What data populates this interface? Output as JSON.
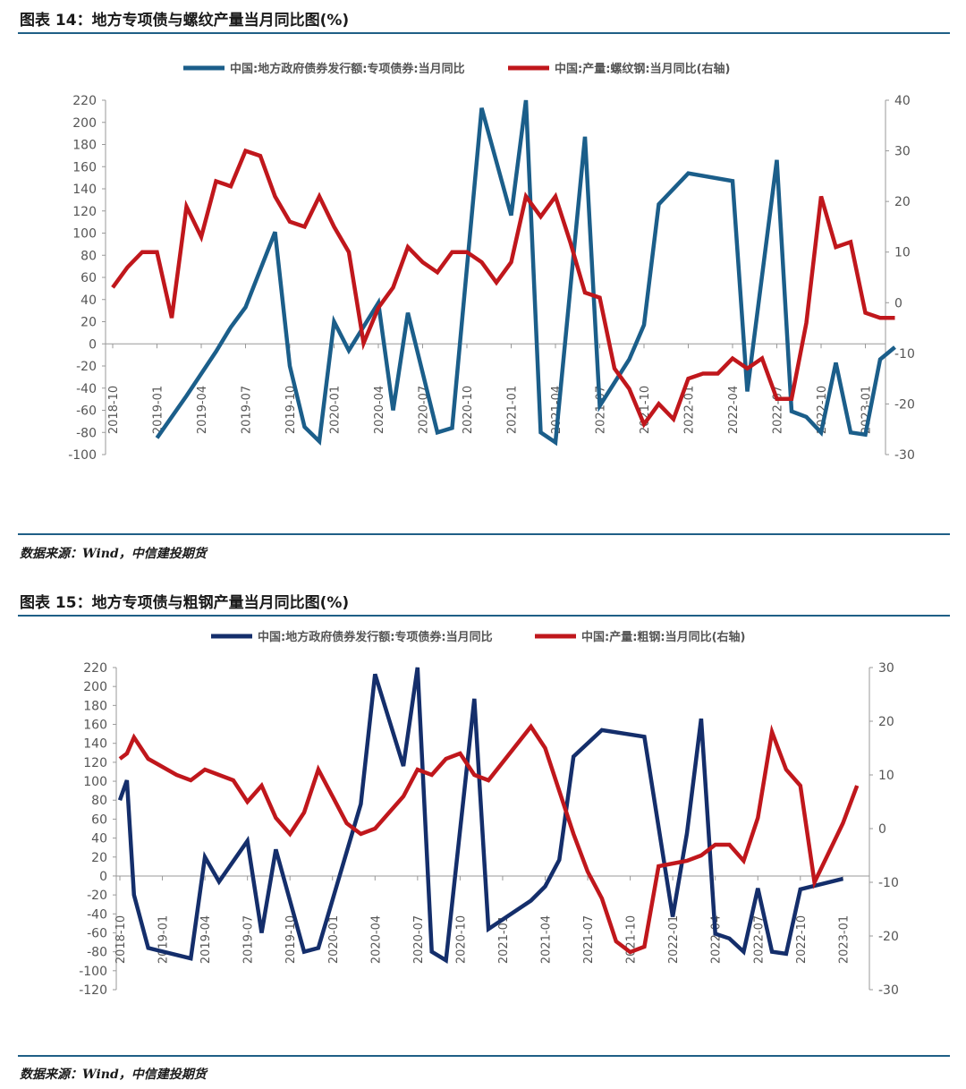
{
  "figures": [
    {
      "title": "图表 14：地方专项债与螺纹产量当月同比图(%)",
      "source": "数据来源：Wind，中信建投期货"
    },
    {
      "title": "图表 15：地方专项债与粗钢产量当月同比图(%)",
      "source": "数据来源：Wind，中信建投期货"
    }
  ],
  "chart_data": [
    {
      "type": "line",
      "title": "地方专项债与螺纹产量当月同比图(%)",
      "categories": [
        "2018-10",
        "2019-01",
        "2019-04",
        "2019-07",
        "2019-10",
        "2020-01",
        "2020-04",
        "2020-07",
        "2020-10",
        "2021-01",
        "2021-04",
        "2021-07",
        "2021-10",
        "2022-01",
        "2022-04",
        "2022-07",
        "2022-10",
        "2023-01"
      ],
      "tick_labels": [
        "2018-10",
        "2019-01",
        "2019-04",
        "2019-07",
        "2019-10",
        "2020-01",
        "2020-04",
        "2020-07",
        "2020-10",
        "2021-01",
        "2021-04",
        "2021-07",
        "2021-10",
        "2022-01",
        "2022-04",
        "2022-07",
        "2022-10",
        "2023-01"
      ],
      "ylim_left": [
        -100,
        220
      ],
      "yticks_left": [
        "220",
        "200",
        "180",
        "160",
        "140",
        "120",
        "100",
        "80",
        "60",
        "40",
        "20",
        "0",
        "-20",
        "-40",
        "-60",
        "-80",
        "-100"
      ],
      "ylim_right": [
        -30,
        40
      ],
      "yticks_right": [
        "40",
        "30",
        "20",
        "10",
        "0",
        "-10",
        "-20",
        "-30"
      ],
      "series": [
        {
          "name": "中国:地方政府债券发行额:专项债券:当月同比",
          "axis": "left",
          "color": "#1b5e8a",
          "points": [
            [
              3,
              -85
            ],
            [
              5,
              -47
            ],
            [
              7,
              -7
            ],
            [
              8,
              15
            ],
            [
              9,
              33
            ],
            [
              11,
              101
            ],
            [
              12,
              -20
            ],
            [
              13,
              -75
            ],
            [
              14,
              -88
            ],
            [
              15,
              20
            ],
            [
              16,
              -6
            ],
            [
              18,
              37
            ],
            [
              19,
              -60
            ],
            [
              20,
              28
            ],
            [
              22,
              -80
            ],
            [
              23,
              -76
            ],
            [
              25,
              213
            ],
            [
              27,
              116
            ],
            [
              28,
              220
            ],
            [
              29,
              -80
            ],
            [
              30,
              -89
            ],
            [
              32,
              187
            ],
            [
              33,
              -56
            ],
            [
              35,
              -14
            ],
            [
              36,
              17
            ],
            [
              37,
              126
            ],
            [
              39,
              154
            ],
            [
              42,
              147
            ],
            [
              43,
              -43
            ],
            [
              45,
              166
            ],
            [
              46,
              -61
            ],
            [
              47,
              -66
            ],
            [
              48,
              -80
            ],
            [
              49,
              -17
            ],
            [
              50,
              -80
            ],
            [
              51,
              -82
            ],
            [
              52,
              -14
            ],
            [
              53,
              -3
            ]
          ]
        },
        {
          "name": "中国:产量:螺纹钢:当月同比(右轴)",
          "axis": "right",
          "color": "#c0171c",
          "points": [
            [
              0,
              3
            ],
            [
              1,
              7
            ],
            [
              2,
              10
            ],
            [
              3,
              10
            ],
            [
              4,
              -3
            ],
            [
              5,
              19
            ],
            [
              6,
              13
            ],
            [
              7,
              24
            ],
            [
              8,
              23
            ],
            [
              9,
              30
            ],
            [
              10,
              29
            ],
            [
              11,
              21
            ],
            [
              12,
              16
            ],
            [
              13,
              15
            ],
            [
              14,
              21
            ],
            [
              15,
              15
            ],
            [
              16,
              10
            ],
            [
              17,
              -8
            ],
            [
              18,
              -1
            ],
            [
              19,
              3
            ],
            [
              20,
              11
            ],
            [
              21,
              8
            ],
            [
              22,
              6
            ],
            [
              23,
              10
            ],
            [
              24,
              10
            ],
            [
              25,
              8
            ],
            [
              26,
              4
            ],
            [
              27,
              8
            ],
            [
              28,
              21
            ],
            [
              29,
              17
            ],
            [
              30,
              21
            ],
            [
              31,
              12
            ],
            [
              32,
              2
            ],
            [
              33,
              1
            ],
            [
              34,
              -13
            ],
            [
              35,
              -17
            ],
            [
              36,
              -24
            ],
            [
              37,
              -20
            ],
            [
              38,
              -23
            ],
            [
              39,
              -15
            ],
            [
              40,
              -14
            ],
            [
              41,
              -14
            ],
            [
              42,
              -11
            ],
            [
              43,
              -13
            ],
            [
              44,
              -11
            ],
            [
              45,
              -19
            ],
            [
              46,
              -19
            ],
            [
              47,
              -4
            ],
            [
              48,
              21
            ],
            [
              49,
              11
            ],
            [
              50,
              12
            ],
            [
              51,
              -2
            ],
            [
              52,
              -3
            ],
            [
              53,
              -3
            ]
          ]
        }
      ]
    },
    {
      "type": "line",
      "title": "地方专项债与粗钢产量当月同比图(%)",
      "categories": [
        "2018-10",
        "2019-01",
        "2019-04",
        "2019-07",
        "2019-10",
        "2020-01",
        "2020-04",
        "2020-07",
        "2020-10",
        "2021-01",
        "2021-04",
        "2021-07",
        "2021-10",
        "2022-01",
        "2022-04",
        "2022-07",
        "2022-10",
        "2023-01"
      ],
      "tick_labels": [
        "2018-10",
        "2019-01",
        "2019-04",
        "2019-07",
        "2019-10",
        "2020-01",
        "2020-04",
        "2020-07",
        "2020-10",
        "2021-01",
        "2021-04",
        "2021-07",
        "2021-10",
        "2022-01",
        "2022-04",
        "2022-07",
        "2022-10",
        "2023-01"
      ],
      "ylim_left": [
        -120,
        220
      ],
      "yticks_left": [
        "220",
        "200",
        "180",
        "160",
        "140",
        "120",
        "100",
        "80",
        "60",
        "40",
        "20",
        "0",
        "-20",
        "-40",
        "-60",
        "-80",
        "-100",
        "-120"
      ],
      "ylim_right": [
        -30,
        30
      ],
      "yticks_right": [
        "30",
        "20",
        "10",
        "0",
        "-10",
        "-20",
        "-30"
      ],
      "series": [
        {
          "name": "中国:地方政府债券发行额:专项债券:当月同比",
          "axis": "left",
          "color": "#142e6b",
          "points": [
            [
              0,
              80
            ],
            [
              0.5,
              101
            ],
            [
              1,
              -20
            ],
            [
              2,
              -76
            ],
            [
              5,
              -87
            ],
            [
              6,
              20
            ],
            [
              7,
              -6
            ],
            [
              9,
              37
            ],
            [
              10,
              -60
            ],
            [
              11,
              28
            ],
            [
              13,
              -80
            ],
            [
              14,
              -76
            ],
            [
              17,
              76
            ],
            [
              18,
              213
            ],
            [
              20,
              116
            ],
            [
              21,
              220
            ],
            [
              22,
              -80
            ],
            [
              23,
              -89
            ],
            [
              25,
              187
            ],
            [
              26,
              -56
            ],
            [
              29,
              -26
            ],
            [
              30,
              -11
            ],
            [
              31,
              17
            ],
            [
              32,
              126
            ],
            [
              34,
              154
            ],
            [
              37,
              147
            ],
            [
              39,
              -43
            ],
            [
              40,
              45
            ],
            [
              41,
              166
            ],
            [
              42,
              -61
            ],
            [
              43,
              -66
            ],
            [
              44,
              -80
            ],
            [
              45,
              -13
            ],
            [
              46,
              -80
            ],
            [
              47,
              -82
            ],
            [
              48,
              -14
            ],
            [
              51,
              -3
            ]
          ]
        },
        {
          "name": "中国:产量:粗钢:当月同比(右轴)",
          "axis": "right",
          "color": "#c0171c",
          "points": [
            [
              0,
              13
            ],
            [
              0.5,
              14
            ],
            [
              1,
              17
            ],
            [
              2,
              13
            ],
            [
              4,
              10
            ],
            [
              5,
              9
            ],
            [
              6,
              11
            ],
            [
              8,
              9
            ],
            [
              9,
              5
            ],
            [
              10,
              8
            ],
            [
              11,
              2
            ],
            [
              12,
              -1
            ],
            [
              13,
              3
            ],
            [
              14,
              11
            ],
            [
              15,
              6
            ],
            [
              16,
              1
            ],
            [
              17,
              -1
            ],
            [
              18,
              0
            ],
            [
              19,
              3
            ],
            [
              20,
              6
            ],
            [
              21,
              11
            ],
            [
              22,
              10
            ],
            [
              23,
              13
            ],
            [
              24,
              14
            ],
            [
              25,
              10
            ],
            [
              26,
              9
            ],
            [
              29,
              19
            ],
            [
              30,
              15
            ],
            [
              31,
              7
            ],
            [
              32,
              -1
            ],
            [
              33,
              -8
            ],
            [
              34,
              -13
            ],
            [
              35,
              -21
            ],
            [
              36,
              -23
            ],
            [
              37,
              -22
            ],
            [
              38,
              -7
            ],
            [
              40,
              -6
            ],
            [
              41,
              -5
            ],
            [
              42,
              -3
            ],
            [
              43,
              -3
            ],
            [
              44,
              -6
            ],
            [
              45,
              2
            ],
            [
              46,
              18
            ],
            [
              47,
              11
            ],
            [
              48,
              8
            ],
            [
              49,
              -10
            ],
            [
              51,
              1
            ],
            [
              52,
              8
            ]
          ]
        }
      ]
    }
  ]
}
